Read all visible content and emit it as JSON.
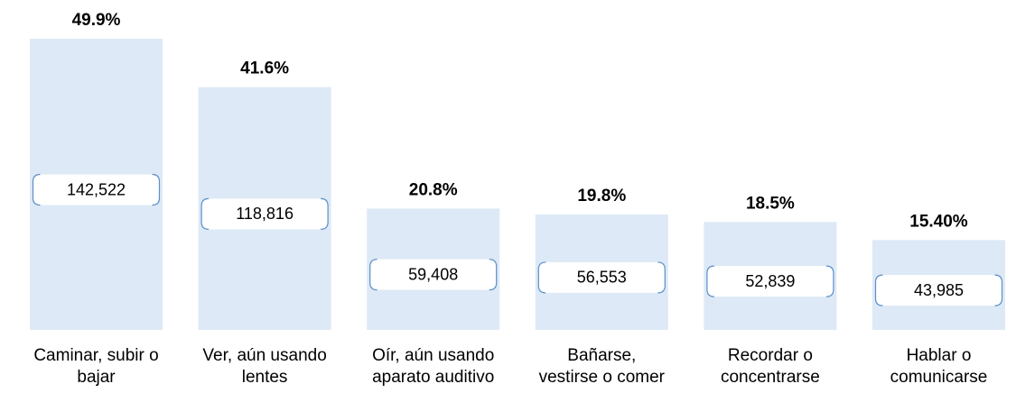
{
  "chart_data": {
    "type": "bar",
    "categories": [
      [
        "Caminar, subir o",
        "bajar"
      ],
      [
        "Ver, aún usando",
        "lentes"
      ],
      [
        "Oír, aún usando",
        "aparato auditivo"
      ],
      [
        "Bañarse,",
        "vestirse o comer"
      ],
      [
        "Recordar o",
        "concentrarse"
      ],
      [
        "Hablar o",
        "comunicarse"
      ]
    ],
    "values": [
      49.9,
      41.6,
      20.8,
      19.8,
      18.5,
      15.4
    ],
    "value_labels": [
      "49.9%",
      "41.6%",
      "20.8%",
      "19.8%",
      "18.5%",
      "15.40%"
    ],
    "counts": [
      142522,
      118816,
      59408,
      56553,
      52839,
      43985
    ],
    "count_labels": [
      "142,522",
      "118,816",
      "59,408",
      "56,553",
      "52,839",
      "43,985"
    ],
    "color": "#dde9f6"
  }
}
